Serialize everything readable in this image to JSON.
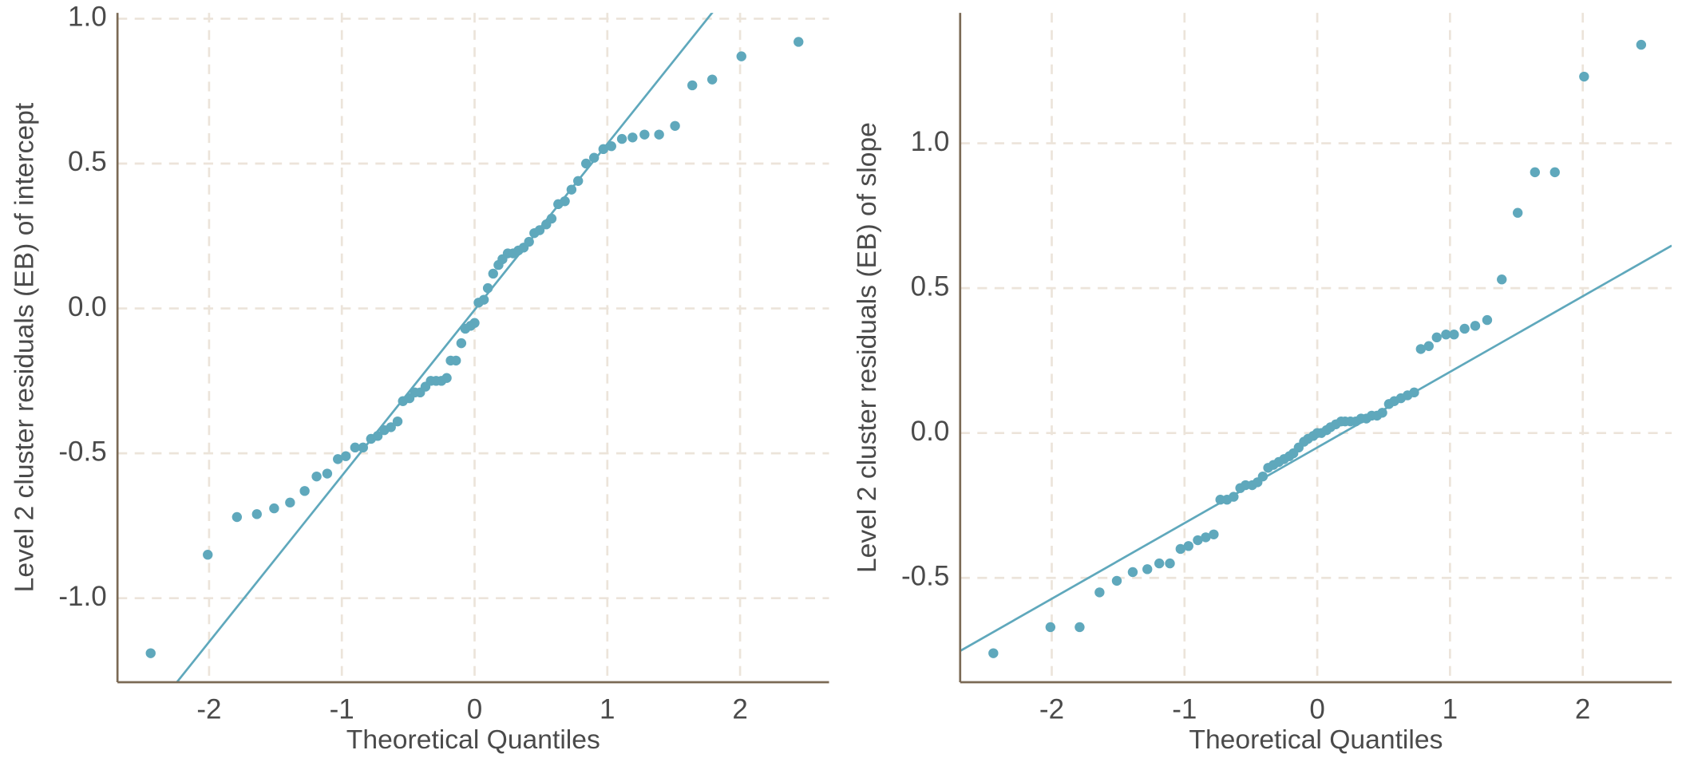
{
  "chart_data": [
    {
      "type": "scatter",
      "xlabel": "Theoretical Quantiles",
      "ylabel": "Level 2 cluster  residuals (EB) of intercept",
      "color": "#5fa8bc",
      "grid": true,
      "xlim": [
        -2.69,
        2.67
      ],
      "ylim": [
        -1.29,
        1.02
      ],
      "xticks": [
        -2,
        -1,
        0,
        1,
        2
      ],
      "yticks": [
        {
          "value": 1,
          "label": "1.0"
        },
        0.5,
        {
          "value": 0,
          "label": "0.0"
        },
        -0.5,
        {
          "value": -1,
          "label": "-1.0"
        }
      ],
      "reference_line": {
        "slope": 0.573,
        "intercept": -0.005
      },
      "x": [
        -2.44,
        -2.01,
        -1.79,
        -1.64,
        -1.51,
        -1.39,
        -1.28,
        -1.19,
        -1.11,
        -1.03,
        -0.97,
        -0.9,
        -0.84,
        -0.78,
        -0.73,
        -0.68,
        -0.63,
        -0.58,
        -0.54,
        -0.49,
        -0.45,
        -0.41,
        -0.37,
        -0.33,
        -0.29,
        -0.25,
        -0.21,
        -0.18,
        -0.14,
        -0.1,
        -0.07,
        -0.03,
        0.0,
        0.03,
        0.07,
        0.1,
        0.14,
        0.18,
        0.21,
        0.25,
        0.29,
        0.33,
        0.37,
        0.41,
        0.45,
        0.49,
        0.54,
        0.58,
        0.63,
        0.68,
        0.73,
        0.78,
        0.84,
        0.9,
        0.97,
        1.03,
        1.11,
        1.19,
        1.28,
        1.39,
        1.51,
        1.64,
        1.79,
        2.01,
        2.44
      ],
      "values": [
        -1.19,
        -0.85,
        -0.72,
        -0.71,
        -0.69,
        -0.67,
        -0.63,
        -0.58,
        -0.57,
        -0.52,
        -0.51,
        -0.48,
        -0.48,
        -0.45,
        -0.44,
        -0.42,
        -0.41,
        -0.39,
        -0.32,
        -0.31,
        -0.29,
        -0.29,
        -0.27,
        -0.25,
        -0.25,
        -0.25,
        -0.24,
        -0.18,
        -0.18,
        -0.12,
        -0.07,
        -0.06,
        -0.05,
        0.02,
        0.03,
        0.07,
        0.12,
        0.15,
        0.17,
        0.19,
        0.19,
        0.2,
        0.21,
        0.23,
        0.26,
        0.27,
        0.29,
        0.31,
        0.36,
        0.37,
        0.41,
        0.44,
        0.5,
        0.52,
        0.55,
        0.56,
        0.585,
        0.59,
        0.6,
        0.6,
        0.63,
        0.77,
        0.79,
        0.87,
        0.92
      ]
    },
    {
      "type": "scatter",
      "xlabel": "Theoretical Quantiles",
      "ylabel": "Level 2 cluster  residuals (EB) of slope",
      "color": "#5fa8bc",
      "grid": true,
      "xlim": [
        -2.69,
        2.67
      ],
      "ylim": [
        -0.86,
        1.45
      ],
      "xticks": [
        -2,
        -1,
        0,
        1,
        2
      ],
      "yticks": [
        {
          "value": 1,
          "label": "1.0"
        },
        0.5,
        {
          "value": 0,
          "label": "0.0"
        },
        -0.5
      ],
      "reference_line": {
        "slope": 0.261,
        "intercept": -0.05
      },
      "x": [
        -2.44,
        -2.01,
        -1.79,
        -1.64,
        -1.51,
        -1.39,
        -1.28,
        -1.19,
        -1.11,
        -1.03,
        -0.97,
        -0.9,
        -0.84,
        -0.78,
        -0.73,
        -0.68,
        -0.63,
        -0.58,
        -0.54,
        -0.49,
        -0.45,
        -0.41,
        -0.37,
        -0.33,
        -0.29,
        -0.25,
        -0.21,
        -0.18,
        -0.14,
        -0.1,
        -0.07,
        -0.03,
        0.0,
        0.03,
        0.07,
        0.1,
        0.14,
        0.18,
        0.21,
        0.25,
        0.29,
        0.33,
        0.37,
        0.41,
        0.45,
        0.49,
        0.54,
        0.58,
        0.63,
        0.68,
        0.73,
        0.78,
        0.84,
        0.9,
        0.97,
        1.03,
        1.11,
        1.19,
        1.28,
        1.39,
        1.51,
        1.64,
        1.79,
        2.01,
        2.44
      ],
      "values": [
        -0.76,
        -0.67,
        -0.67,
        -0.55,
        -0.51,
        -0.48,
        -0.47,
        -0.45,
        -0.45,
        -0.4,
        -0.39,
        -0.37,
        -0.36,
        -0.35,
        -0.23,
        -0.23,
        -0.22,
        -0.19,
        -0.18,
        -0.18,
        -0.17,
        -0.15,
        -0.12,
        -0.11,
        -0.1,
        -0.09,
        -0.08,
        -0.07,
        -0.05,
        -0.03,
        -0.02,
        -0.01,
        0.0,
        0.0,
        0.01,
        0.02,
        0.03,
        0.04,
        0.04,
        0.04,
        0.04,
        0.05,
        0.05,
        0.06,
        0.06,
        0.07,
        0.1,
        0.11,
        0.12,
        0.13,
        0.14,
        0.29,
        0.3,
        0.33,
        0.34,
        0.34,
        0.36,
        0.37,
        0.39,
        0.53,
        0.76,
        0.9,
        0.9,
        1.23,
        1.34
      ]
    }
  ]
}
